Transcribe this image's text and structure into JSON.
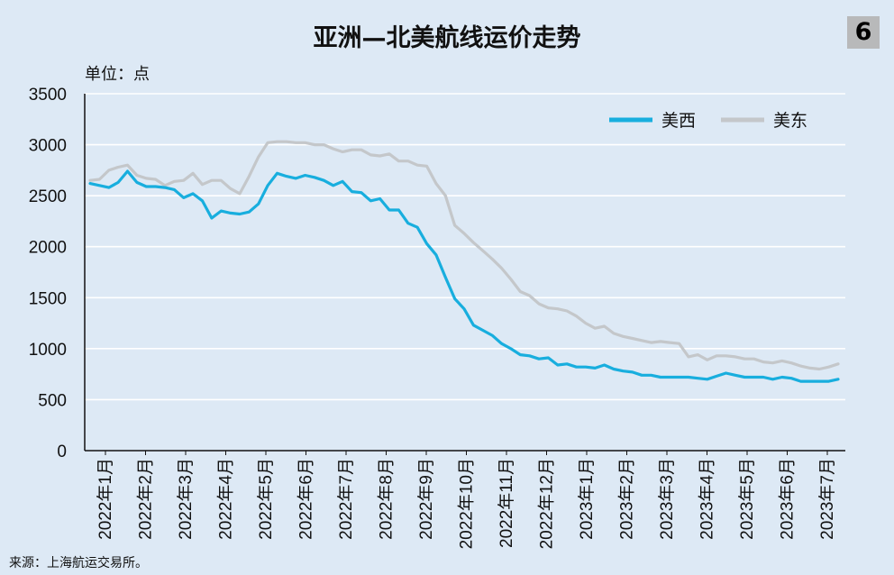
{
  "header": {
    "title": "亚洲—北美航线运价走势",
    "badge": "6",
    "unit": "单位：点"
  },
  "footer": {
    "source": "来源：上海航运交易所。"
  },
  "colors": {
    "background": "#dde9f5",
    "west": "#18aede",
    "east": "#c4c7ca",
    "grid": "#ffffff"
  },
  "chart_data": {
    "type": "line",
    "ylim": [
      0,
      3500
    ],
    "yticks": [
      0,
      500,
      1000,
      1500,
      2000,
      2500,
      3000,
      3500
    ],
    "x_tick_labels": [
      "2022年1月",
      "2022年2月",
      "2022年3月",
      "2022年4月",
      "2022年5月",
      "2022年6月",
      "2022年7月",
      "2022年8月",
      "2022年9月",
      "2022年10月",
      "2022年11月",
      "2022年12月",
      "2023年1月",
      "2023年2月",
      "2023年3月",
      "2023年4月",
      "2023年5月",
      "2023年6月",
      "2023年7月"
    ],
    "legend_position": "top-right",
    "grid": true,
    "series": [
      {
        "name": "美西",
        "color": "#18aede",
        "values": [
          2620,
          2600,
          2580,
          2630,
          2740,
          2630,
          2590,
          2590,
          2580,
          2560,
          2480,
          2520,
          2450,
          2280,
          2350,
          2330,
          2320,
          2340,
          2420,
          2600,
          2720,
          2690,
          2670,
          2700,
          2680,
          2650,
          2600,
          2640,
          2540,
          2530,
          2450,
          2470,
          2360,
          2360,
          2230,
          2190,
          2030,
          1920,
          1700,
          1490,
          1390,
          1230,
          1180,
          1130,
          1050,
          1000,
          940,
          930,
          900,
          910,
          840,
          850,
          820,
          820,
          810,
          840,
          800,
          780,
          770,
          740,
          740,
          720,
          720,
          720,
          720,
          710,
          700,
          730,
          760,
          740,
          720,
          720,
          720,
          700,
          720,
          710,
          680,
          680,
          680,
          680,
          700
        ]
      },
      {
        "name": "美东",
        "color": "#c4c7ca",
        "values": [
          2650,
          2660,
          2750,
          2780,
          2800,
          2700,
          2670,
          2660,
          2600,
          2640,
          2650,
          2720,
          2610,
          2650,
          2650,
          2570,
          2520,
          2690,
          2880,
          3020,
          3030,
          3030,
          3020,
          3020,
          3000,
          3000,
          2960,
          2930,
          2950,
          2950,
          2900,
          2890,
          2910,
          2840,
          2840,
          2800,
          2790,
          2620,
          2500,
          2210,
          2130,
          2040,
          1960,
          1880,
          1790,
          1680,
          1560,
          1520,
          1440,
          1400,
          1390,
          1370,
          1320,
          1250,
          1200,
          1220,
          1150,
          1120,
          1100,
          1080,
          1060,
          1070,
          1060,
          1050,
          920,
          940,
          890,
          930,
          930,
          920,
          900,
          900,
          870,
          860,
          880,
          860,
          830,
          810,
          800,
          820,
          850
        ]
      }
    ]
  }
}
